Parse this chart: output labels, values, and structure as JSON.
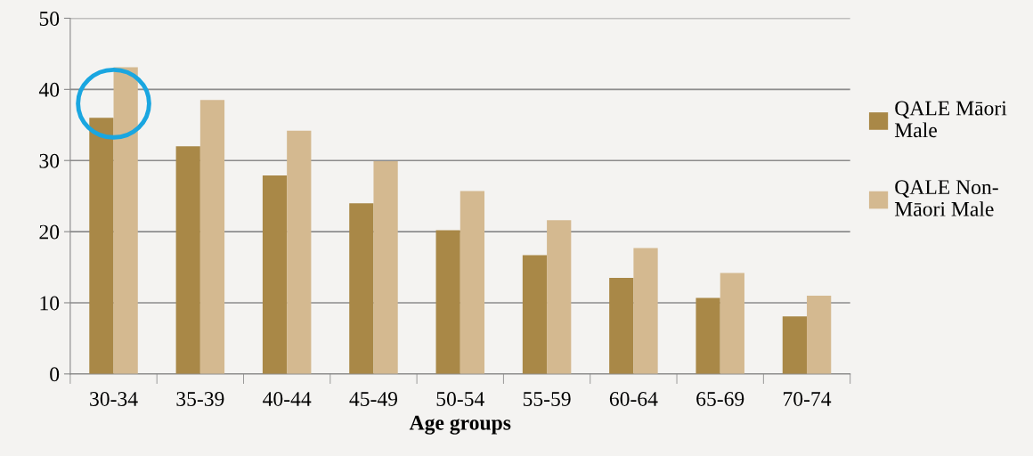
{
  "chart_data": {
    "type": "bar",
    "xlabel": "Age groups",
    "categories": [
      "30-34",
      "35-39",
      "40-44",
      "45-49",
      "50-54",
      "55-59",
      "60-64",
      "65-69",
      "70-74"
    ],
    "series": [
      {
        "name": "QALE Māori Male",
        "color": "#a98847",
        "values": [
          36,
          32,
          27.9,
          24,
          20.2,
          16.7,
          13.5,
          10.7,
          8.1
        ]
      },
      {
        "name": "QALE Non-Māori Male",
        "color": "#d4b990",
        "values": [
          43.1,
          38.5,
          34.2,
          29.9,
          25.7,
          21.6,
          17.7,
          14.2,
          11
        ]
      }
    ],
    "ylim": [
      0,
      50
    ],
    "yticks": [
      0,
      10,
      20,
      30,
      40,
      50
    ],
    "grid": "y",
    "legend": "right"
  }
}
